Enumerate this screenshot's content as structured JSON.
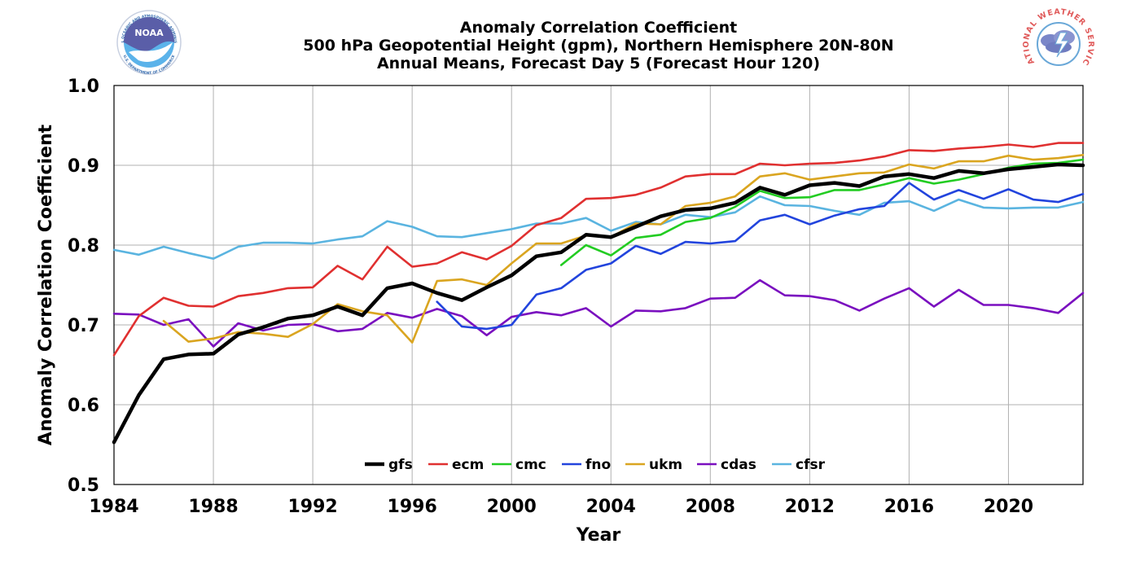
{
  "logos": {
    "left": {
      "name": "NOAA",
      "ring_text": "NATIONAL OCEANIC AND ATMOSPHERIC ADMINISTRATION",
      "bottom_text": "U.S. DEPARTMENT OF COMMERCE",
      "color": "#3a6fb0"
    },
    "right": {
      "name": "NATIONAL WEATHER SERVICE",
      "color": "#e05a5a"
    }
  },
  "chart_data": {
    "type": "line",
    "title": [
      "Anomaly Correlation Coefficient",
      "500 hPa Geopotential Height (gpm), Northern Hemisphere 20N-80N",
      "Annual Means, Forecast Day 5 (Forecast Hour 120)"
    ],
    "xlabel": "Year",
    "ylabel": "Anomaly Correlation Coefficient",
    "xlim": [
      1984,
      2023
    ],
    "ylim": [
      0.5,
      1.0
    ],
    "xticks": [
      1984,
      1988,
      1992,
      1996,
      2000,
      2004,
      2008,
      2012,
      2016,
      2020
    ],
    "xtick_labels": [
      "1984",
      "1988",
      "1992",
      "1996",
      "2000",
      "2004",
      "2008",
      "2012",
      "2016",
      "2020"
    ],
    "yticks": [
      0.5,
      0.6,
      0.7,
      0.8,
      0.9,
      1.0
    ],
    "ytick_labels": [
      "0.5",
      "0.6",
      "0.7",
      "0.8",
      "0.9",
      "1.0"
    ],
    "grid": true,
    "legend_position": "bottom-center",
    "series": [
      {
        "name": "gfs",
        "color": "#000000",
        "bold": true,
        "start": 1984,
        "values": [
          0.553,
          0.612,
          0.657,
          0.663,
          0.664,
          0.688,
          0.697,
          0.708,
          0.712,
          0.723,
          0.712,
          0.746,
          0.752,
          0.74,
          0.731,
          0.747,
          0.762,
          0.786,
          0.791,
          0.813,
          0.81,
          0.823,
          0.836,
          0.844,
          0.846,
          0.853,
          0.872,
          0.863,
          0.875,
          0.878,
          0.874,
          0.886,
          0.889,
          0.884,
          0.893,
          0.89,
          0.895,
          0.898,
          0.901,
          0.9
        ]
      },
      {
        "name": "ecm",
        "color": "#e03030",
        "bold": false,
        "start": 1984,
        "values": [
          0.662,
          0.711,
          0.734,
          0.724,
          0.723,
          0.736,
          0.74,
          0.746,
          0.747,
          0.774,
          0.757,
          0.798,
          0.773,
          0.777,
          0.791,
          0.782,
          0.799,
          0.825,
          0.834,
          0.858,
          0.859,
          0.863,
          0.872,
          0.886,
          0.889,
          0.889,
          0.902,
          0.9,
          0.902,
          0.903,
          0.906,
          0.911,
          0.919,
          0.918,
          0.921,
          0.923,
          0.926,
          0.923,
          0.928,
          0.928
        ]
      },
      {
        "name": "cmc",
        "color": "#22cc22",
        "bold": false,
        "start": 2002,
        "values": [
          0.775,
          0.8,
          0.787,
          0.809,
          0.813,
          0.829,
          0.834,
          0.848,
          0.868,
          0.859,
          0.86,
          0.869,
          0.869,
          0.876,
          0.884,
          0.877,
          0.882,
          0.889,
          0.897,
          0.902,
          0.903,
          0.907
        ]
      },
      {
        "name": "fno",
        "color": "#2244dd",
        "bold": false,
        "start": 1997,
        "values": [
          0.729,
          0.698,
          0.695,
          0.7,
          0.738,
          0.746,
          0.769,
          0.777,
          0.799,
          0.789,
          0.804,
          0.802,
          0.805,
          0.831,
          0.838,
          0.826,
          0.837,
          0.845,
          0.849,
          0.878,
          0.857,
          0.869,
          0.858,
          0.87,
          0.857,
          0.854,
          0.864
        ]
      },
      {
        "name": "ukm",
        "color": "#daa520",
        "bold": false,
        "start": 1986,
        "values": [
          0.705,
          0.679,
          0.683,
          0.691,
          0.689,
          0.685,
          0.701,
          0.726,
          0.717,
          0.712,
          0.678,
          0.755,
          0.757,
          0.75,
          0.777,
          0.802,
          0.802,
          0.812,
          0.81,
          0.827,
          0.826,
          0.849,
          0.853,
          0.861,
          0.886,
          0.89,
          0.882,
          0.886,
          0.89,
          0.891,
          0.901,
          0.896,
          0.905,
          0.905,
          0.912,
          0.907,
          0.909,
          0.913
        ]
      },
      {
        "name": "cdas",
        "color": "#7a0fbf",
        "bold": false,
        "start": 1984,
        "values": [
          0.714,
          0.713,
          0.7,
          0.707,
          0.673,
          0.702,
          0.693,
          0.7,
          0.701,
          0.692,
          0.695,
          0.715,
          0.709,
          0.72,
          0.711,
          0.687,
          0.71,
          0.716,
          0.712,
          0.721,
          0.698,
          0.718,
          0.717,
          0.721,
          0.733,
          0.734,
          0.756,
          0.737,
          0.736,
          0.731,
          0.718,
          0.733,
          0.746,
          0.723,
          0.744,
          0.725,
          0.725,
          0.721,
          0.715,
          0.74
        ]
      },
      {
        "name": "cfsr",
        "color": "#5ab4e0",
        "bold": false,
        "start": 1984,
        "values": [
          0.794,
          0.788,
          0.798,
          0.79,
          0.783,
          0.798,
          0.803,
          0.803,
          0.802,
          0.807,
          0.811,
          0.83,
          0.823,
          0.811,
          0.81,
          0.815,
          0.82,
          0.827,
          0.827,
          0.834,
          0.818,
          0.829,
          0.826,
          0.838,
          0.835,
          0.841,
          0.861,
          0.85,
          0.849,
          0.843,
          0.838,
          0.853,
          0.855,
          0.843,
          0.857,
          0.847,
          0.846,
          0.847,
          0.847,
          0.854
        ]
      }
    ]
  }
}
